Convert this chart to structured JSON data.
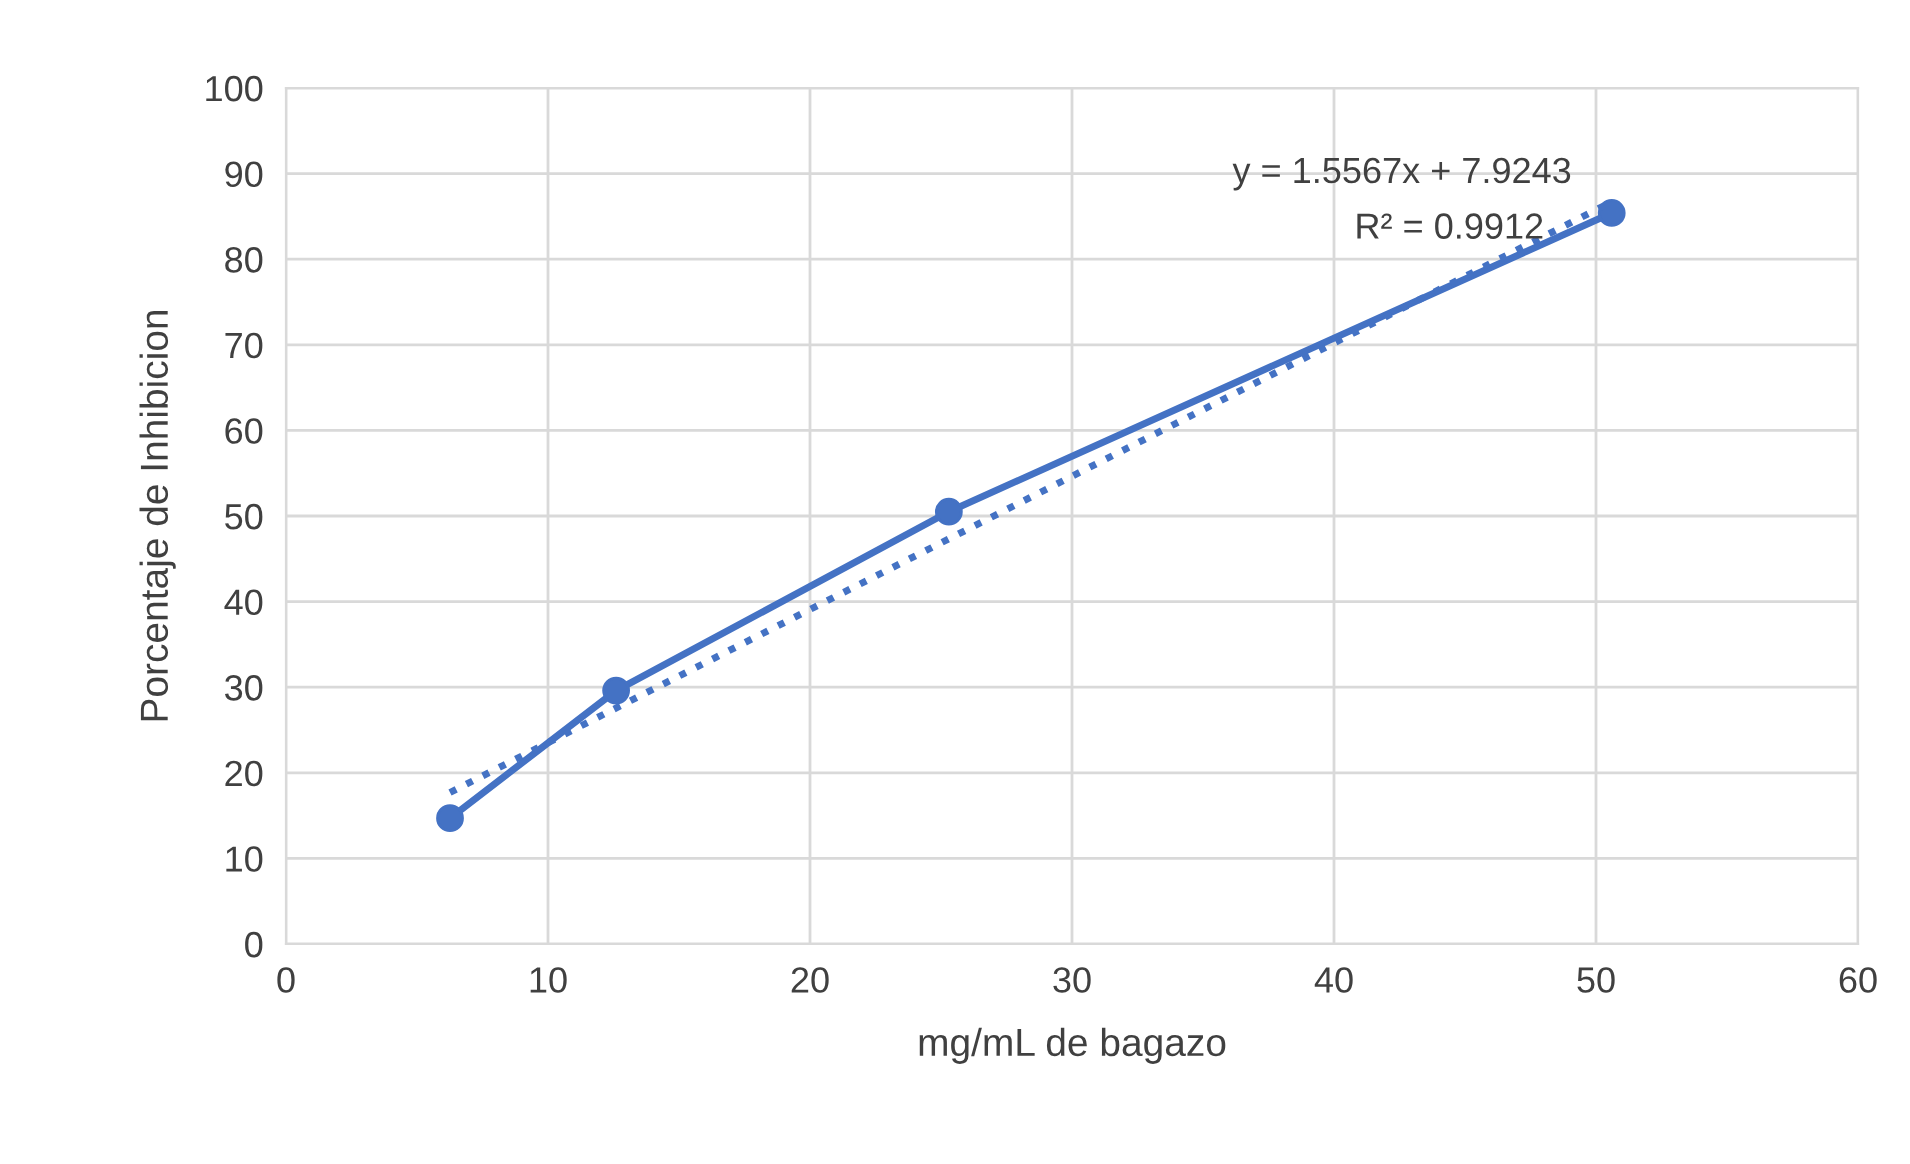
{
  "chart_data": {
    "type": "line",
    "xlabel": "mg/mL de bagazo",
    "ylabel": "Porcentaje de Inhibicion",
    "series": [
      {
        "color": "#4472c4",
        "x": [
          6.26,
          12.6,
          25.3,
          50.6
        ],
        "values": [
          14.7,
          29.6,
          50.5,
          85.4
        ],
        "marker": "circle",
        "line_style": "solid"
      },
      {
        "type": "line",
        "color": "#4472c4",
        "x": [
          6.26,
          50.6
        ],
        "values": [
          17.7,
          86.7
        ],
        "marker": "none",
        "line_style": "dotted"
      }
    ],
    "annotations": [
      "y = 1.5567x + 7.9243",
      "R² = 0.9912"
    ],
    "xlim": [
      0,
      60
    ],
    "xticks": [
      0,
      10,
      20,
      30,
      40,
      50,
      60
    ],
    "ylim": [
      0,
      100
    ],
    "yticks": [
      0,
      10,
      20,
      30,
      40,
      50,
      60,
      70,
      80,
      90,
      100
    ],
    "grid": true
  }
}
